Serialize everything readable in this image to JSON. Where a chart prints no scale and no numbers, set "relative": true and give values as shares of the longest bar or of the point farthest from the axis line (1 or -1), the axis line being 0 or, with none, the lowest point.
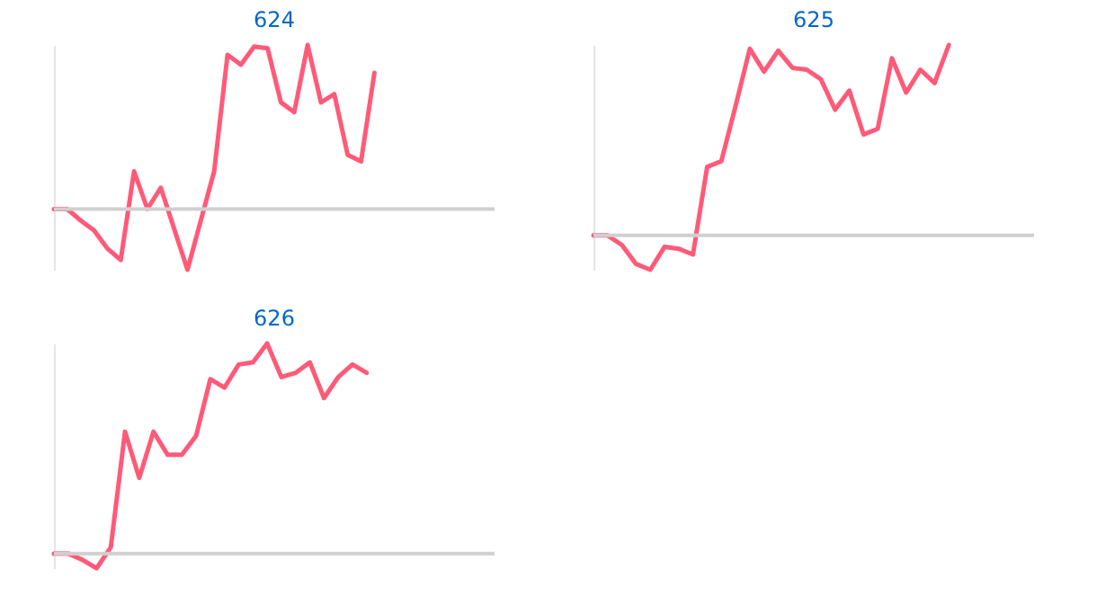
{
  "chart_data": [
    {
      "type": "line",
      "title": "624",
      "relative": true,
      "tick_labels": false,
      "marker": "none",
      "line_style": "solid",
      "categories": [
        null,
        null,
        null,
        null,
        null,
        null,
        null,
        null,
        null,
        null,
        null,
        null,
        null,
        null,
        null,
        null,
        null,
        null,
        null,
        null,
        null,
        null,
        null,
        null,
        null,
        null,
        null,
        null,
        null,
        null,
        null,
        null,
        null,
        null
      ],
      "series": [
        {
          "color": "#ff5a78",
          "values": [
            0,
            0,
            -0.07,
            -0.13,
            -0.24,
            -0.31,
            0.23,
            0.0,
            0.13,
            -0.12,
            -0.37,
            -0.07,
            0.23,
            0.94,
            0.88,
            0.99,
            0.98,
            0.65,
            0.59,
            1,
            0.65,
            0.7,
            0.33,
            0.29,
            0.83,
            null,
            null,
            null,
            null,
            null,
            null,
            null,
            null,
            null
          ]
        }
      ]
    },
    {
      "type": "line",
      "title": "625",
      "relative": true,
      "tick_labels": false,
      "marker": "none",
      "line_style": "solid",
      "categories": [
        null,
        null,
        null,
        null,
        null,
        null,
        null,
        null,
        null,
        null,
        null,
        null,
        null,
        null,
        null,
        null,
        null,
        null,
        null,
        null,
        null,
        null,
        null,
        null,
        null,
        null,
        null,
        null,
        null,
        null,
        null,
        null
      ],
      "series": [
        {
          "color": "#ff5a78",
          "values": [
            0,
            0,
            -0.05,
            -0.15,
            -0.18,
            -0.06,
            -0.07,
            -0.1,
            0.36,
            0.39,
            0.68,
            0.98,
            0.86,
            0.97,
            0.88,
            0.87,
            0.82,
            0.66,
            0.76,
            0.53,
            0.56,
            0.93,
            0.75,
            0.87,
            0.8,
            1,
            null,
            null,
            null,
            null,
            null,
            null
          ]
        }
      ]
    },
    {
      "type": "line",
      "title": "626",
      "relative": true,
      "tick_labels": false,
      "marker": "none",
      "line_style": "solid",
      "categories": [
        null,
        null,
        null,
        null,
        null,
        null,
        null,
        null,
        null,
        null,
        null,
        null,
        null,
        null,
        null,
        null,
        null,
        null,
        null,
        null,
        null,
        null,
        null,
        null,
        null,
        null,
        null,
        null,
        null,
        null,
        null,
        null
      ],
      "series": [
        {
          "color": "#ff5a78",
          "values": [
            0,
            0,
            -0.03,
            -0.07,
            0.03,
            0.58,
            0.36,
            0.58,
            0.47,
            0.47,
            0.56,
            0.83,
            0.79,
            0.9,
            0.91,
            1,
            0.84,
            0.86,
            0.91,
            0.74,
            0.84,
            0.9,
            0.86,
            null,
            null,
            null,
            null,
            null,
            null,
            null,
            null,
            null
          ]
        }
      ]
    }
  ]
}
